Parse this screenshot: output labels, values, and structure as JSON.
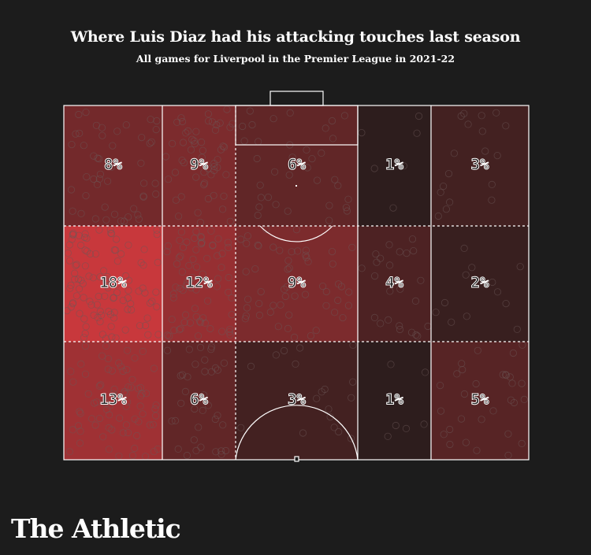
{
  "header": {
    "title": "Where Luis Diaz had his attacking touches last season",
    "subtitle": "All games for Liverpool in the Premier League in 2021-22"
  },
  "brand": {
    "logo_text": "The Athletic"
  },
  "colors": {
    "background": "#1c1c1c",
    "low": "#1e1a1a",
    "high": "#c8383c",
    "lines": "#ffffff",
    "dots": "#6b5858"
  },
  "chart_data": {
    "type": "heatmap",
    "title": "Where Luis Diaz had his attacking touches last season",
    "subtitle": "All games for Liverpool in the Premier League in 2021-22",
    "unit": "%",
    "rows": 3,
    "cols": 5,
    "zones": [
      {
        "row": 0,
        "col": 0,
        "value": 8,
        "label": "8%"
      },
      {
        "row": 0,
        "col": 1,
        "value": 9,
        "label": "9%"
      },
      {
        "row": 0,
        "col": 2,
        "value": 6,
        "label": "6%"
      },
      {
        "row": 0,
        "col": 3,
        "value": 1,
        "label": "1%"
      },
      {
        "row": 0,
        "col": 4,
        "value": 3,
        "label": "3%"
      },
      {
        "row": 1,
        "col": 0,
        "value": 18,
        "label": "18%"
      },
      {
        "row": 1,
        "col": 1,
        "value": 12,
        "label": "12%"
      },
      {
        "row": 1,
        "col": 2,
        "value": 9,
        "label": "9%"
      },
      {
        "row": 1,
        "col": 3,
        "value": 4,
        "label": "4%"
      },
      {
        "row": 1,
        "col": 4,
        "value": 2,
        "label": "2%"
      },
      {
        "row": 2,
        "col": 0,
        "value": 13,
        "label": "13%"
      },
      {
        "row": 2,
        "col": 1,
        "value": 6,
        "label": "6%"
      },
      {
        "row": 2,
        "col": 2,
        "value": 3,
        "label": "3%"
      },
      {
        "row": 2,
        "col": 3,
        "value": 1,
        "label": "1%"
      },
      {
        "row": 2,
        "col": 4,
        "value": 5,
        "label": "5%"
      }
    ]
  }
}
